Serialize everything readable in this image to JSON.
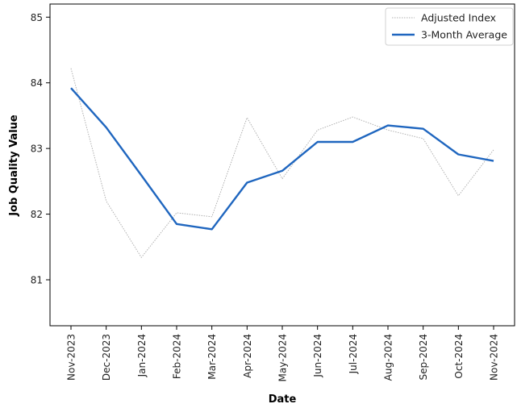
{
  "chart_data": {
    "type": "line",
    "xlabel": "Date",
    "ylabel": "Job Quality Value",
    "x": [
      "Nov-2023",
      "Dec-2023",
      "Jan-2024",
      "Feb-2024",
      "Mar-2024",
      "Apr-2024",
      "May-2024",
      "Jun-2024",
      "Jul-2024",
      "Aug-2024",
      "Sep-2024",
      "Oct-2024",
      "Nov-2024"
    ],
    "ylim": [
      80.3,
      85.2
    ],
    "yticks": [
      81,
      82,
      83,
      84,
      85
    ],
    "grid": false,
    "legend": "top-right",
    "series": [
      {
        "name": "Adjusted Index",
        "style": "thin dotted",
        "color": "#b0b0b0",
        "values": [
          84.22,
          82.2,
          81.34,
          82.02,
          81.96,
          83.47,
          82.54,
          83.28,
          83.48,
          83.28,
          83.15,
          82.28,
          82.98
        ]
      },
      {
        "name": "3-Month Average",
        "style": "solid",
        "color": "#1f66bf",
        "values": [
          83.92,
          83.32,
          82.59,
          81.85,
          81.77,
          82.48,
          82.66,
          83.1,
          83.1,
          83.35,
          83.3,
          82.91,
          82.81
        ]
      }
    ]
  }
}
